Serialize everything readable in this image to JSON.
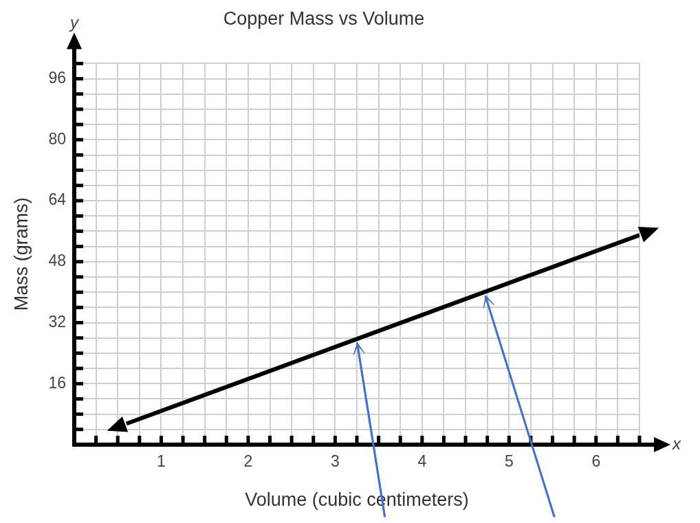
{
  "chart_data": {
    "type": "line",
    "title": "Copper Mass vs Volume",
    "xlabel": "Volume (cubic centimeters)",
    "ylabel": "Mass (grams)",
    "annotations": [
      "y",
      "x"
    ],
    "x": [
      0.6,
      6.5
    ],
    "series": [
      {
        "color": "#000000",
        "values": [
          5.5,
          55
        ]
      }
    ],
    "xlim": [
      0,
      6.5
    ],
    "ylim": [
      0,
      100
    ],
    "xticks": [
      {
        "value": 0,
        "label": null
      },
      {
        "value": 0.25,
        "label": null
      },
      {
        "value": 0.5,
        "label": null
      },
      {
        "value": 0.75,
        "label": null
      },
      1,
      {
        "value": 1.25,
        "label": null
      },
      {
        "value": 1.5,
        "label": null
      },
      {
        "value": 1.75,
        "label": null
      },
      2,
      {
        "value": 2.25,
        "label": null
      },
      {
        "value": 2.5,
        "label": null
      },
      {
        "value": 2.75,
        "label": null
      },
      3,
      {
        "value": 3.25,
        "label": null
      },
      {
        "value": 3.5,
        "label": null
      },
      {
        "value": 3.75,
        "label": null
      },
      4,
      {
        "value": 4.25,
        "label": null
      },
      {
        "value": 4.5,
        "label": null
      },
      {
        "value": 4.75,
        "label": null
      },
      5,
      {
        "value": 5.25,
        "label": null
      },
      {
        "value": 5.5,
        "label": null
      },
      {
        "value": 5.75,
        "label": null
      },
      6,
      {
        "value": 6.25,
        "label": null
      },
      {
        "value": 6.5,
        "label": null
      }
    ],
    "yticks": [
      {
        "value": 0,
        "label": null
      },
      {
        "value": 4,
        "label": null
      },
      {
        "value": 8,
        "label": null
      },
      {
        "value": 12,
        "label": null
      },
      16,
      {
        "value": 20,
        "label": null
      },
      {
        "value": 24,
        "label": null
      },
      {
        "value": 28,
        "label": null
      },
      32,
      {
        "value": 36,
        "label": null
      },
      {
        "value": 40,
        "label": null
      },
      {
        "value": 44,
        "label": null
      },
      48,
      {
        "value": 52,
        "label": null
      },
      {
        "value": 56,
        "label": null
      },
      {
        "value": 60,
        "label": null
      },
      64,
      {
        "value": 68,
        "label": null
      },
      {
        "value": 72,
        "label": null
      },
      {
        "value": 76,
        "label": null
      },
      80,
      {
        "value": 84,
        "label": null
      },
      {
        "value": 88,
        "label": null
      },
      {
        "value": 92,
        "label": null
      },
      96,
      {
        "value": 100,
        "label": null
      }
    ],
    "grid": true,
    "marker": "none",
    "line_style": "solid"
  }
}
